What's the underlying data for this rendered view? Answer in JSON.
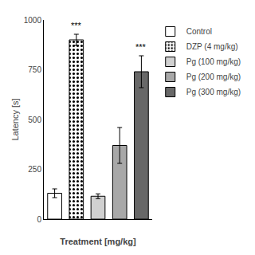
{
  "chart_data": {
    "type": "bar",
    "xlabel": "Treatment [mg/kg]",
    "ylabel": "Latency [s]",
    "categories": [
      "Control",
      "DZP (4 mg/kg)",
      "Pg (100 mg/kg)",
      "Pg (200 mg/kg)",
      "Pg (300 mg/kg)"
    ],
    "series": [
      {
        "name": "Control",
        "color": "white",
        "values": [
          130,
          null,
          null,
          null,
          null
        ],
        "errors": [
          22,
          null,
          null,
          null,
          null
        ]
      },
      {
        "name": "DZP (4 mg/kg)",
        "color": "white",
        "marker": "dots",
        "values": [
          null,
          900,
          null,
          null,
          null
        ],
        "errors": [
          null,
          28,
          null,
          null,
          null
        ]
      },
      {
        "name": "Pg (100 mg/kg)",
        "color": "#d0d0d0",
        "values": [
          null,
          null,
          115,
          null,
          null
        ],
        "errors": [
          null,
          null,
          12,
          null,
          null
        ]
      },
      {
        "name": "Pg (200 mg/kg)",
        "color": "#a8a8a8",
        "values": [
          null,
          null,
          null,
          370,
          null
        ],
        "errors": [
          null,
          null,
          null,
          90,
          null
        ]
      },
      {
        "name": "Pg (300 mg/kg)",
        "color": "#686868",
        "values": [
          null,
          null,
          null,
          null,
          740
        ],
        "errors": [
          null,
          null,
          null,
          null,
          80
        ]
      }
    ],
    "annotations": [
      {
        "x": "DZP (4 mg/kg)",
        "text": "***"
      },
      {
        "x": "Pg (300 mg/kg)",
        "text": "***"
      }
    ],
    "ylim": [
      0,
      1000
    ],
    "yticks": [
      0,
      250,
      500,
      750,
      1000
    ],
    "grid": false,
    "legend": "right",
    "tick_labels": "y"
  }
}
